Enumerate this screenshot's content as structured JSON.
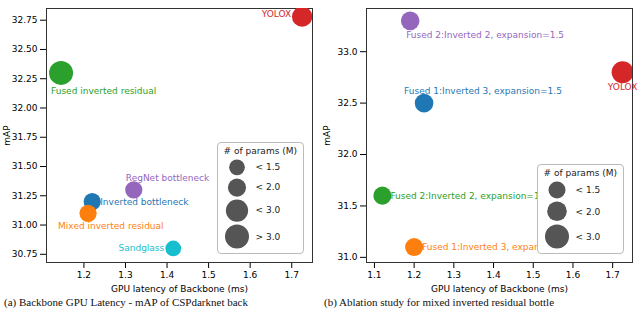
{
  "chart_data": [
    {
      "type": "scatter",
      "x_label": "GPU latency of Backbone (ms)",
      "y_label": "mAP",
      "xlim": [
        1.11,
        1.75
      ],
      "ylim": [
        30.68,
        32.85
      ],
      "xticks": [
        1.2,
        1.3,
        1.4,
        1.5,
        1.6,
        1.7
      ],
      "yticks": [
        30.75,
        {
          "value": 31,
          "label": "31.00"
        },
        31.25,
        {
          "value": 31.5,
          "label": "31.50"
        },
        31.75,
        {
          "value": 32,
          "label": "32.00"
        },
        32.25,
        {
          "value": 32.5,
          "label": "32.50"
        },
        32.75
      ],
      "points": [
        {
          "name": "YOLOX",
          "x": 1.725,
          "y": 32.78,
          "size": 2.5,
          "color": "#d62728"
        },
        {
          "name": "Fused inverted residual",
          "x": 1.145,
          "y": 32.3,
          "size": 3.5,
          "color": "#2ca02c"
        },
        {
          "name": "RegNet bottleneck",
          "x": 1.32,
          "y": 31.3,
          "size": 1.8,
          "color": "#9467bd"
        },
        {
          "name": "Inverted bottleneck",
          "x": 1.22,
          "y": 31.2,
          "size": 1.8,
          "color": "#1f77b4"
        },
        {
          "name": "Mixed inverted residual",
          "x": 1.21,
          "y": 31.1,
          "size": 1.8,
          "color": "#ff7f0e"
        },
        {
          "name": "Sandglass",
          "x": 1.415,
          "y": 30.8,
          "size": 1.5,
          "color": "#17becf"
        }
      ],
      "size_legend": {
        "title": "# of params (M)",
        "entries": [
          {
            "label": "< 1.5",
            "value": 1.5
          },
          {
            "label": "< 2.0",
            "value": 2.0
          },
          {
            "label": "< 3.0",
            "value": 3.0
          },
          {
            "label": "> 3.0",
            "value": 3.5
          }
        ]
      },
      "caption": "(a) Backbone GPU Latency - mAP of CSPdarknet back"
    },
    {
      "type": "scatter",
      "x_label": "GPU latency of Backbone (ms)",
      "y_label": "mAP",
      "xlim": [
        1.08,
        1.75
      ],
      "ylim": [
        30.95,
        33.42
      ],
      "xticks": [
        1.1,
        1.2,
        1.3,
        1.4,
        1.5,
        1.6,
        1.7
      ],
      "yticks": [
        {
          "value": 31,
          "label": "31.0"
        },
        31.5,
        {
          "value": 32,
          "label": "32.0"
        },
        32.5,
        {
          "value": 33,
          "label": "33.0"
        }
      ],
      "points": [
        {
          "name": "Fused 2:Inverted 2, expansion=1.5",
          "x": 1.19,
          "y": 33.3,
          "size": 1.8,
          "color": "#9467bd"
        },
        {
          "name": "Fused 1:Inverted 3, expansion=1.5",
          "x": 1.225,
          "y": 32.5,
          "size": 1.8,
          "color": "#1f77b4"
        },
        {
          "name": "YOLOX",
          "x": 1.725,
          "y": 32.8,
          "size": 2.5,
          "color": "#d62728"
        },
        {
          "name": "Fused 2:Inverted 2, expansion=1",
          "x": 1.12,
          "y": 31.6,
          "size": 1.7,
          "color": "#2ca02c"
        },
        {
          "name": "Fused 1:Inverted 3, expansion=1",
          "x": 1.2,
          "y": 31.1,
          "size": 1.7,
          "color": "#ff7f0e"
        }
      ],
      "size_legend": {
        "title": "# of params (M)",
        "entries": [
          {
            "label": "< 1.5",
            "value": 1.5
          },
          {
            "label": "< 2.0",
            "value": 2.0
          },
          {
            "label": "< 3.0",
            "value": 3.0
          }
        ]
      },
      "caption": "(b) Ablation study for mixed inverted residual bottle"
    }
  ]
}
